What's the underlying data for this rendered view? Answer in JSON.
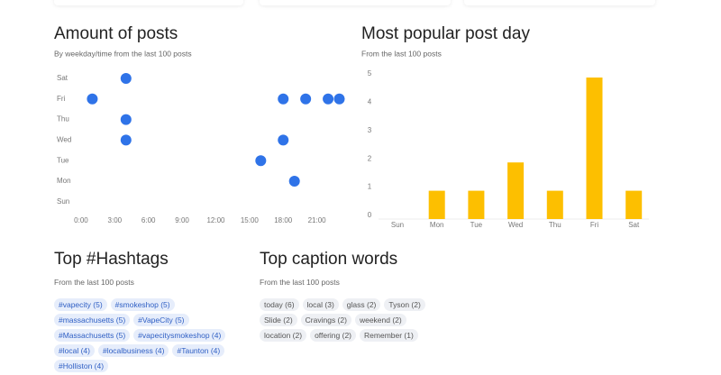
{
  "chart_data": [
    {
      "type": "scatter",
      "title": "Amount of posts",
      "subtitle": "By weekday/time from the last 100 posts",
      "categories": [
        "Sat",
        "Fri",
        "Thu",
        "Wed",
        "Tue",
        "Mon",
        "Sun"
      ],
      "x": [
        4,
        1,
        18,
        20,
        22,
        23,
        4,
        4,
        18,
        16,
        19
      ],
      "y": [
        "Sat",
        "Fri",
        "Fri",
        "Fri",
        "Fri",
        "Fri",
        "Thu",
        "Wed",
        "Wed",
        "Tue",
        "Mon"
      ],
      "xlim": [
        -1,
        24
      ],
      "xticks": [
        {
          "value": 0,
          "label": "0:00"
        },
        {
          "value": 3,
          "label": "3:00"
        },
        {
          "value": 6,
          "label": "6:00"
        },
        {
          "value": 9,
          "label": "9:00"
        },
        {
          "value": 12,
          "label": "12:00"
        },
        {
          "value": 15,
          "label": "15:00"
        },
        {
          "value": 18,
          "label": "18:00"
        },
        {
          "value": 21,
          "label": "21:00"
        }
      ],
      "color": "#2f73e8"
    },
    {
      "type": "bar",
      "title": "Most popular post day",
      "subtitle": "From the last 100 posts",
      "categories": [
        "Sun",
        "Mon",
        "Tue",
        "Wed",
        "Thu",
        "Fri",
        "Sat"
      ],
      "values": [
        0,
        1,
        1,
        2,
        1,
        5,
        1
      ],
      "ylim": [
        0,
        5
      ],
      "yticks": [
        0,
        1,
        2,
        3,
        4,
        5
      ],
      "grid": false,
      "color": "#fdbf00"
    }
  ],
  "hashtags": {
    "title": "Top #Hashtags",
    "subtitle": "From the last 100 posts",
    "items": [
      "#vapecity (5)",
      "#smokeshop (5)",
      "#massachusetts (5)",
      "#VapeCity (5)",
      "#Massachusetts (5)",
      "#vapecitysmokeshop (4)",
      "#local (4)",
      "#localbusiness (4)",
      "#Taunton (4)",
      "#Holliston (4)"
    ]
  },
  "caption_words": {
    "title": "Top caption words",
    "subtitle": "From the last 100 posts",
    "items": [
      "today (6)",
      "local (3)",
      "glass (2)",
      "Tyson (2)",
      "Slide (2)",
      "Cravings (2)",
      "weekend (2)",
      "location (2)",
      "offering (2)",
      "Remember (1)"
    ]
  }
}
